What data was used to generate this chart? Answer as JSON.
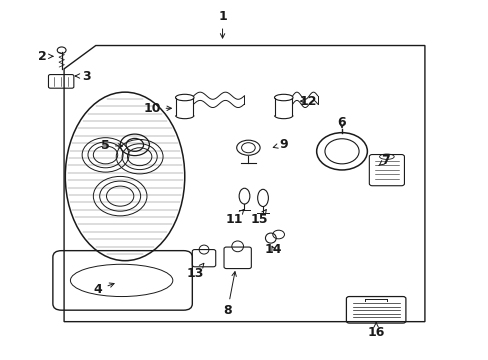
{
  "bg_color": "#ffffff",
  "line_color": "#1a1a1a",
  "text_color": "#1a1a1a",
  "fig_width": 4.89,
  "fig_height": 3.6,
  "dpi": 100,
  "label_positions": {
    "1": [
      0.455,
      0.955,
      0.455,
      0.885
    ],
    "2": [
      0.085,
      0.845,
      0.115,
      0.845
    ],
    "3": [
      0.175,
      0.79,
      0.145,
      0.79
    ],
    "4": [
      0.2,
      0.195,
      0.24,
      0.215
    ],
    "5": [
      0.215,
      0.595,
      0.258,
      0.595
    ],
    "6": [
      0.7,
      0.66,
      0.7,
      0.635
    ],
    "7": [
      0.79,
      0.555,
      0.775,
      0.54
    ],
    "8": [
      0.465,
      0.135,
      0.482,
      0.255
    ],
    "9": [
      0.58,
      0.6,
      0.557,
      0.59
    ],
    "10": [
      0.31,
      0.7,
      0.358,
      0.7
    ],
    "11": [
      0.48,
      0.39,
      0.5,
      0.42
    ],
    "12": [
      0.63,
      0.72,
      0.607,
      0.72
    ],
    "13": [
      0.4,
      0.24,
      0.418,
      0.27
    ],
    "14": [
      0.56,
      0.305,
      0.553,
      0.325
    ],
    "15": [
      0.53,
      0.39,
      0.546,
      0.42
    ],
    "16": [
      0.77,
      0.075,
      0.77,
      0.105
    ]
  }
}
